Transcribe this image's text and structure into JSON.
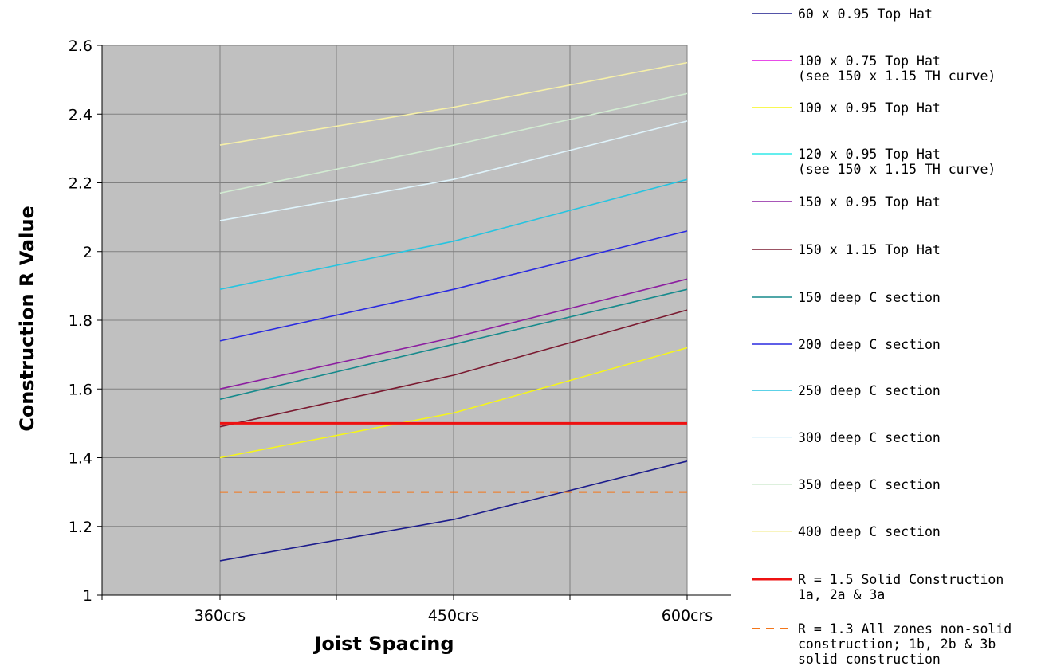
{
  "chart_data": {
    "type": "line",
    "categories": [
      "360crs",
      "450crs",
      "600crs"
    ],
    "xlabel": "Joist Spacing",
    "ylabel": "Construction R Value",
    "ylim": [
      1,
      2.6
    ],
    "yticks": [
      "1",
      "1.2",
      "1.4",
      "1.6",
      "1.8",
      "2",
      "2.2",
      "2.4",
      "2.6"
    ],
    "grid": true,
    "plot_background": "#c0c0c0",
    "legend_position": "right",
    "series": [
      {
        "name": "60 x 0.95 Top Hat",
        "color": "#1c1c8c",
        "values": [
          1.1,
          1.22,
          1.39
        ]
      },
      {
        "name": "100 x 0.75 Top Hat\n(see 150 x 1.15 TH curve)",
        "color": "#e010e0",
        "values": null
      },
      {
        "name": "100 x 0.95 Top Hat",
        "color": "#f5f51a",
        "values": [
          1.4,
          1.53,
          1.72
        ]
      },
      {
        "name": "120 x 0.95 Top Hat\n(see 150 x 1.15 TH curve)",
        "color": "#30e8e8",
        "values": null
      },
      {
        "name": "150 x 0.95 Top Hat",
        "color": "#8c1ea0",
        "values": [
          1.6,
          1.75,
          1.92
        ]
      },
      {
        "name": "150 x 1.15 Top Hat",
        "color": "#7a1a30",
        "values": [
          1.49,
          1.64,
          1.83
        ]
      },
      {
        "name": "150 deep C section",
        "color": "#168a8c",
        "values": [
          1.57,
          1.73,
          1.89
        ]
      },
      {
        "name": "200 deep C section",
        "color": "#2a2ae0",
        "values": [
          1.74,
          1.89,
          2.06
        ]
      },
      {
        "name": "250 deep C section",
        "color": "#26c4e0",
        "values": [
          1.89,
          2.03,
          2.21
        ]
      },
      {
        "name": "300 deep C section",
        "color": "#dff4fc",
        "values": [
          2.09,
          2.21,
          2.38
        ]
      },
      {
        "name": "350 deep C section",
        "color": "#d2ecd2",
        "values": [
          2.17,
          2.31,
          2.46
        ]
      },
      {
        "name": "400 deep C section",
        "color": "#f6f0a8",
        "values": [
          2.31,
          2.42,
          2.55
        ]
      },
      {
        "name": "R = 1.5 Solid Construction\n1a, 2a & 3a",
        "color": "#ee1111",
        "values": [
          1.5,
          1.5,
          1.5
        ],
        "thick": true
      },
      {
        "name": "R = 1.3 All zones non-solid\nconstruction; 1b, 2b & 3b\nsolid construction",
        "color": "#f4761a",
        "values": [
          1.3,
          1.3,
          1.3
        ],
        "dashed": true
      }
    ]
  }
}
